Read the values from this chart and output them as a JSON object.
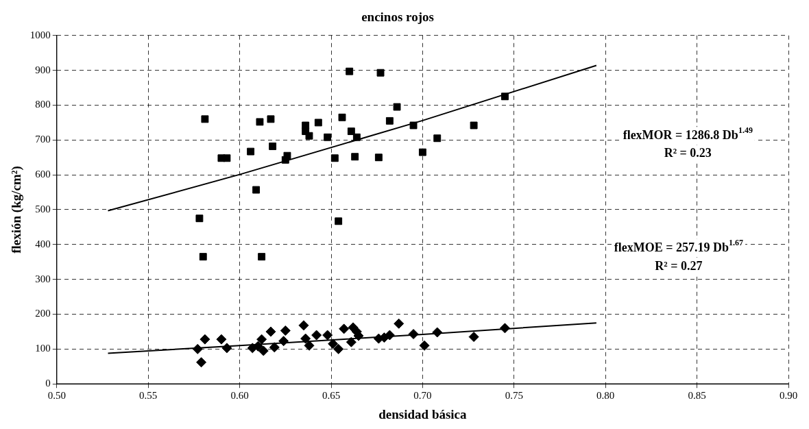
{
  "chart_data": {
    "type": "scatter",
    "title": "encinos rojos",
    "xlabel": "densidad básica",
    "ylabel": "flexión (kg/cm²)",
    "xlim": [
      0.5,
      0.9
    ],
    "xticks": [
      {
        "value": 0.5,
        "label": "0.50"
      },
      {
        "value": 0.55,
        "label": "0.55"
      },
      {
        "value": 0.6,
        "label": "0.60"
      },
      {
        "value": 0.65,
        "label": "0.65"
      },
      {
        "value": 0.7,
        "label": "0.70"
      },
      {
        "value": 0.75,
        "label": "0.75"
      },
      {
        "value": 0.8,
        "label": "0.80"
      },
      {
        "value": 0.85,
        "label": "0.85"
      },
      {
        "value": 0.9,
        "label": "0.90"
      }
    ],
    "ylim": [
      0,
      1000
    ],
    "yticks": [
      0,
      100,
      200,
      300,
      400,
      500,
      600,
      700,
      800,
      900,
      1000
    ],
    "grid": true,
    "legend": false,
    "annotations": [
      "flexMOR = 1286.8 Db$^{1.49}$",
      "R² = 0.23",
      "flexMOE = 257.19 Db$^{1.67}$",
      "R² = 0.27"
    ],
    "series": [
      {
        "type": "scatter",
        "marker": "square",
        "color": "#000000",
        "x": [
          0.578,
          0.58,
          0.581,
          0.59,
          0.593,
          0.606,
          0.609,
          0.611,
          0.612,
          0.617,
          0.618,
          0.625,
          0.626,
          0.636,
          0.636,
          0.638,
          0.643,
          0.648,
          0.652,
          0.654,
          0.656,
          0.66,
          0.661,
          0.663,
          0.664,
          0.676,
          0.677,
          0.682,
          0.686,
          0.695,
          0.7,
          0.708,
          0.728,
          0.745
        ],
        "values": [
          475,
          365,
          760,
          648,
          648,
          667,
          557,
          752,
          365,
          760,
          682,
          643,
          655,
          742,
          725,
          712,
          750,
          708,
          648,
          467,
          765,
          897,
          725,
          652,
          708,
          650,
          893,
          755,
          795,
          742,
          665,
          705,
          742,
          825
        ]
      },
      {
        "type": "scatter",
        "marker": "diamond",
        "color": "#000000",
        "x": [
          0.577,
          0.579,
          0.581,
          0.59,
          0.593,
          0.607,
          0.61,
          0.612,
          0.613,
          0.617,
          0.619,
          0.624,
          0.625,
          0.635,
          0.636,
          0.638,
          0.642,
          0.648,
          0.651,
          0.654,
          0.657,
          0.661,
          0.662,
          0.664,
          0.665,
          0.676,
          0.679,
          0.682,
          0.687,
          0.695,
          0.701,
          0.708,
          0.728,
          0.745
        ],
        "values": [
          100,
          62,
          128,
          128,
          103,
          103,
          108,
          128,
          95,
          150,
          105,
          123,
          153,
          168,
          130,
          110,
          140,
          140,
          115,
          100,
          158,
          120,
          162,
          150,
          138,
          130,
          133,
          140,
          173,
          143,
          110,
          148,
          135,
          160
        ]
      },
      {
        "type": "line",
        "marker": "none",
        "line_style": "solid",
        "color": "#000000",
        "x": [
          0.528,
          0.6,
          0.7,
          0.795
        ],
        "values": [
          497,
          601,
          756,
          914
        ]
      },
      {
        "type": "line",
        "marker": "none",
        "line_style": "solid",
        "color": "#000000",
        "x": [
          0.528,
          0.6,
          0.7,
          0.795
        ],
        "values": [
          88,
          110,
          142,
          175
        ]
      }
    ]
  }
}
